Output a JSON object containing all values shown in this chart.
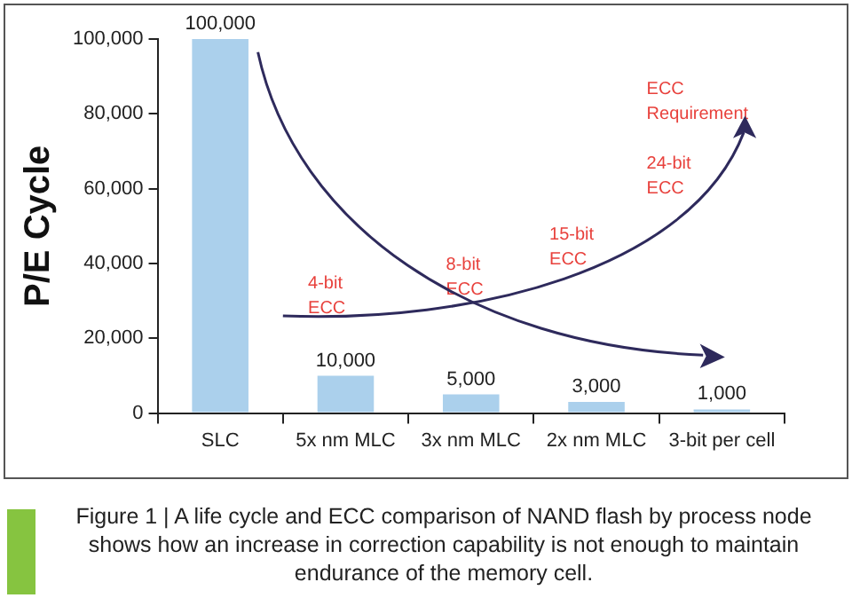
{
  "chart_data": {
    "type": "bar",
    "ylabel": "P/E Cycle",
    "categories": [
      "SLC",
      "5x nm MLC",
      "3x nm MLC",
      "2x nm MLC",
      "3-bit per cell"
    ],
    "values": [
      100000,
      10000,
      5000,
      3000,
      1000
    ],
    "color": "#abd0ec",
    "value_labels": [
      "100,000",
      "10,000",
      "5,000",
      "3,000",
      "1,000"
    ],
    "ylim": [
      0,
      100000
    ],
    "yticks": [
      0,
      {
        "value": 20000,
        "label": "20,000"
      },
      {
        "value": 40000,
        "label": "40,000"
      },
      {
        "value": 60000,
        "label": "60,000"
      },
      {
        "value": 80000,
        "label": "80,000"
      },
      {
        "value": 100000,
        "label": "100,000"
      }
    ],
    "grid": false,
    "annotations": [
      "4-bit ECC",
      "8-bit ECC",
      "15-bit ECC",
      "24-bit ECC",
      "ECC Requirement",
      "Figure 1 | A life cycle and ECC comparison of NAND flash by process node shows how an increase in correction capability is not enough to maintain endurance of the memory cell."
    ]
  }
}
